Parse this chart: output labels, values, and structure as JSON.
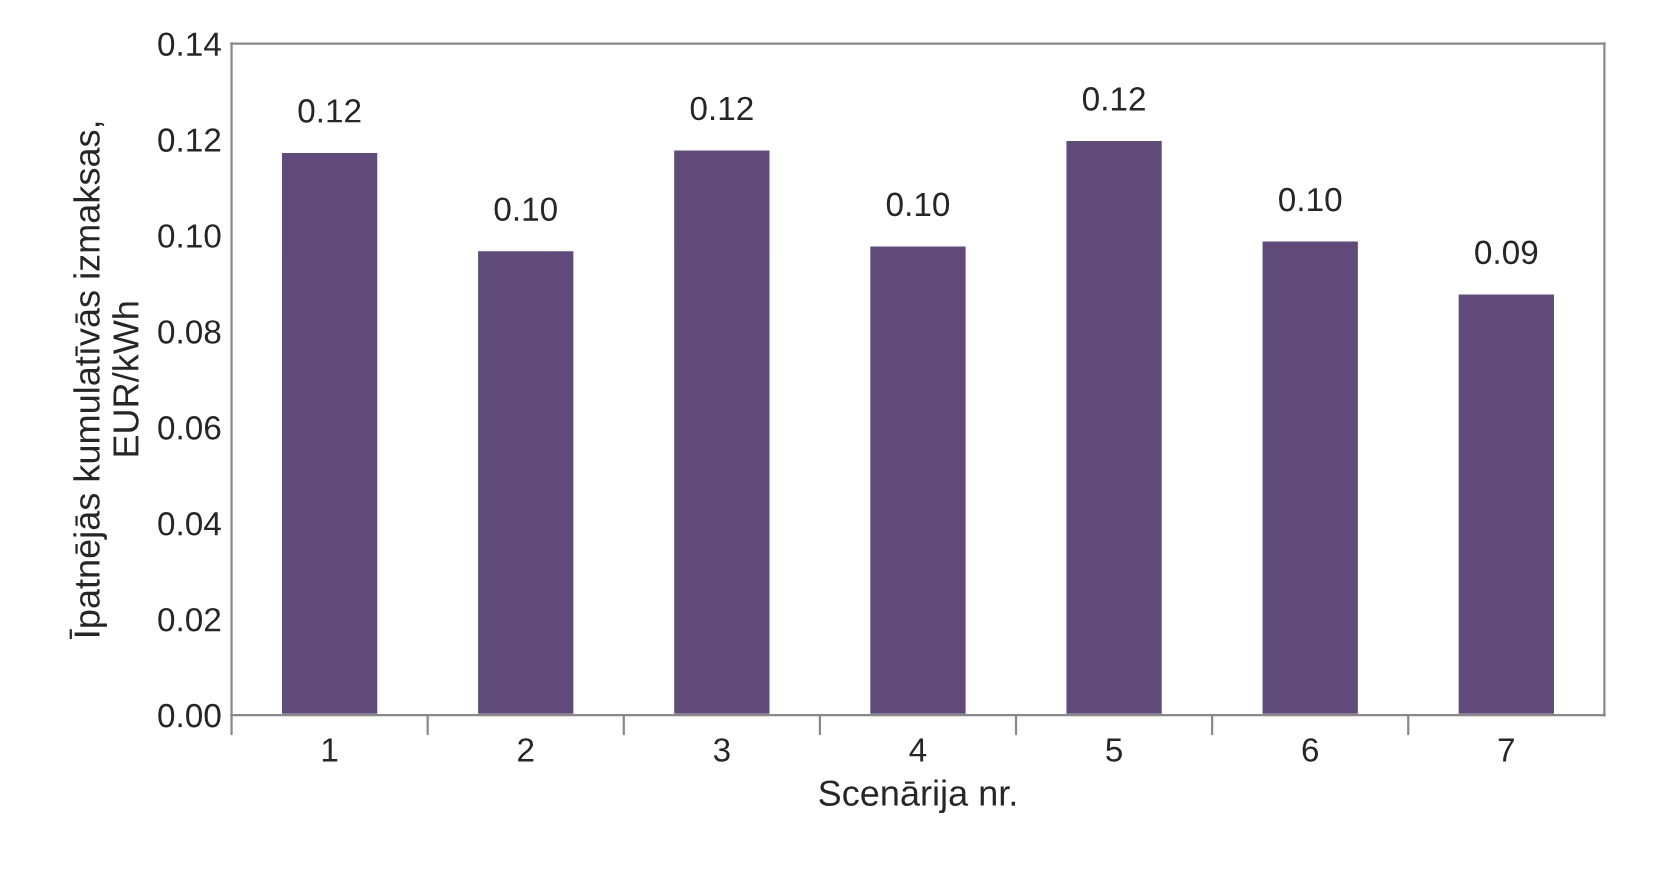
{
  "chart_data": {
    "type": "bar",
    "xlabel": "Scenārija nr.",
    "ylabel": "Īpatnējās kumulatīvās izmaksas,\nEUR/kWh",
    "categories": [
      "1",
      "2",
      "3",
      "4",
      "5",
      "6",
      "7"
    ],
    "values": [
      0.1175,
      0.097,
      0.118,
      0.098,
      0.12,
      0.099,
      0.088
    ],
    "value_labels": [
      "0.12",
      "0.10",
      "0.12",
      "0.10",
      "0.12",
      "0.10",
      "0.09"
    ],
    "color": "#5f4a7a",
    "ylim": [
      0,
      0.14
    ],
    "yticks": [
      {
        "value": 0,
        "label": "0.00"
      },
      {
        "value": 0.02,
        "label": "0.02"
      },
      {
        "value": 0.04,
        "label": "0.04"
      },
      {
        "value": 0.06,
        "label": "0.06"
      },
      {
        "value": 0.08,
        "label": "0.08"
      },
      {
        "value": 0.1,
        "label": "0.10"
      },
      {
        "value": 0.12,
        "label": "0.12"
      },
      {
        "value": 0.14,
        "label": "0.14"
      }
    ],
    "grid": false,
    "legend": false
  }
}
